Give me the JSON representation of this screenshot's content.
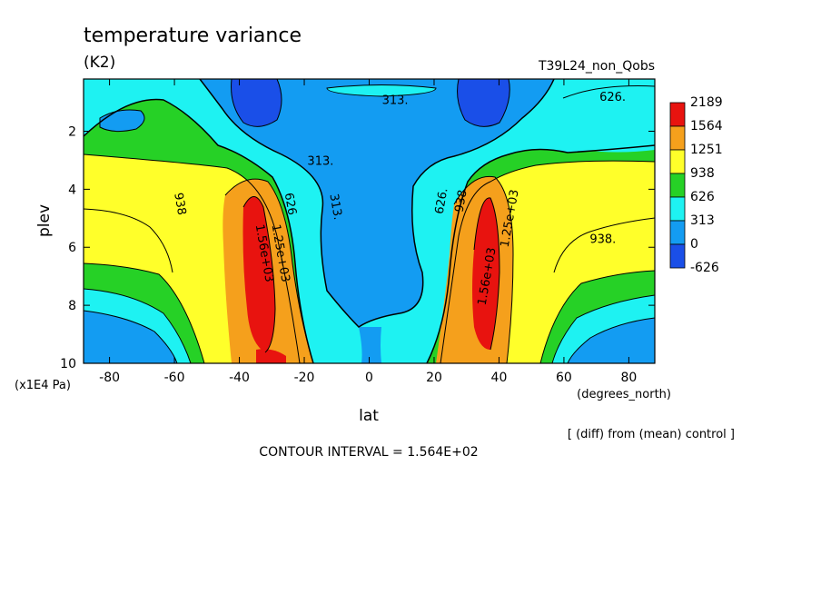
{
  "chart_data": {
    "type": "heatmap",
    "title": "temperature variance",
    "units": "(K2)",
    "run_label": "T39L24_non_Qobs",
    "xlabel": "lat",
    "xunits": "(degrees_north)",
    "ylabel": "plev",
    "yunits": "(x1E4 Pa)",
    "xlim": [
      -88,
      88
    ],
    "ylim": [
      10,
      0.2
    ],
    "x_ticks": [
      -80,
      -60,
      -40,
      -20,
      0,
      20,
      40,
      60,
      80
    ],
    "x_tick_labels": [
      "-80",
      "-60",
      "-40",
      "-20",
      "0",
      "20",
      "40",
      "60",
      "80"
    ],
    "y_ticks": [
      2,
      4,
      6,
      8,
      10
    ],
    "y_tick_labels": [
      "2",
      "4",
      "6",
      "8",
      "10"
    ],
    "colorbar": {
      "levels": [
        "2189",
        "1564",
        "1251",
        "938",
        "626",
        "313",
        "0",
        "-626"
      ],
      "colors": [
        "#e8130f",
        "#f5a01c",
        "#ffff2a",
        "#26d126",
        "#1ef2f2",
        "#139cf2",
        "#1a4fe8"
      ]
    },
    "contour_labels": [
      {
        "text": "313.",
        "lat": 8,
        "plev": 0.9
      },
      {
        "text": "626.",
        "lat": 75,
        "plev": 0.8
      },
      {
        "text": "313.",
        "lat": -15,
        "plev": 3.0
      },
      {
        "text": "938",
        "lat": -58,
        "plev": 4.5
      },
      {
        "text": "626",
        "lat": -24,
        "plev": 4.5
      },
      {
        "text": "313.",
        "lat": -10,
        "plev": 4.6
      },
      {
        "text": "1.56e+03",
        "lat": -32,
        "plev": 6.2
      },
      {
        "text": "1.25e+03",
        "lat": -27,
        "plev": 6.2
      },
      {
        "text": "626.",
        "lat": 22,
        "plev": 4.4
      },
      {
        "text": "938",
        "lat": 28,
        "plev": 4.4
      },
      {
        "text": "1.25e+03",
        "lat": 43,
        "plev": 5.0
      },
      {
        "text": "1.56e+03",
        "lat": 36,
        "plev": 7.0
      },
      {
        "text": "938.",
        "lat": 72,
        "plev": 5.7
      }
    ],
    "contour_interval": "CONTOUR INTERVAL = 1.564E+02",
    "note": "[ (diff) from (mean) control ]"
  }
}
